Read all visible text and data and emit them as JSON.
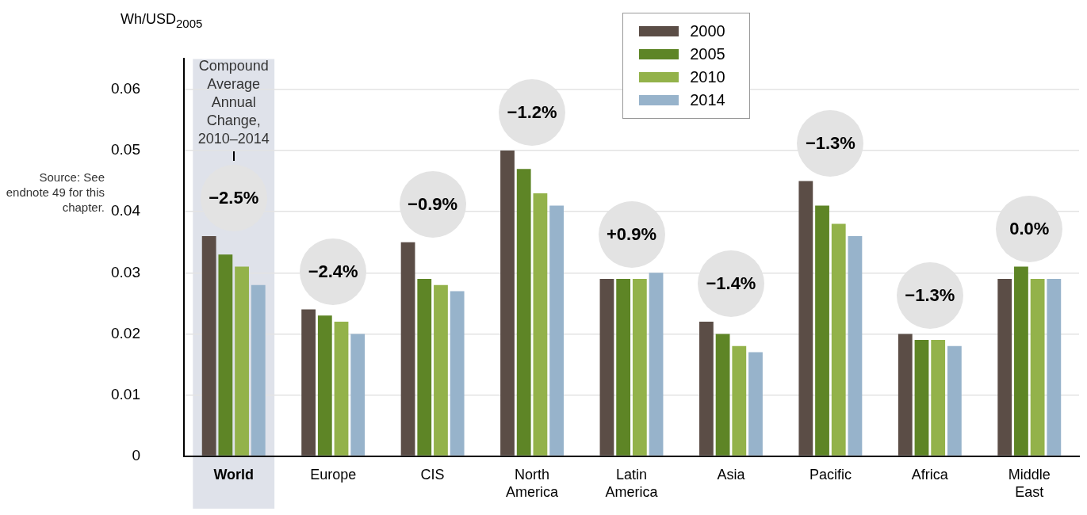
{
  "chart_data": {
    "type": "bar",
    "ylabel": "Wh/USD$_{2005}$",
    "categories": [
      "World",
      "Europe",
      "CIS",
      "North America",
      "Latin America",
      "Asia",
      "Pacific",
      "Africa",
      "Middle East"
    ],
    "series": [
      {
        "name": "2000",
        "color": "#5b4d46",
        "values": [
          0.036,
          0.024,
          0.035,
          0.05,
          0.029,
          0.022,
          0.045,
          0.02,
          0.029
        ]
      },
      {
        "name": "2005",
        "color": "#5e8526",
        "values": [
          0.033,
          0.023,
          0.029,
          0.047,
          0.029,
          0.02,
          0.041,
          0.019,
          0.031
        ]
      },
      {
        "name": "2010",
        "color": "#93b24a",
        "values": [
          0.031,
          0.022,
          0.028,
          0.043,
          0.029,
          0.018,
          0.038,
          0.019,
          0.029
        ]
      },
      {
        "name": "2014",
        "color": "#97b3cb",
        "values": [
          0.028,
          0.02,
          0.027,
          0.041,
          0.03,
          0.017,
          0.036,
          0.018,
          0.029
        ]
      }
    ],
    "ylim": [
      0,
      0.065
    ],
    "yticks": [
      0,
      0.01,
      0.02,
      0.03,
      0.04,
      0.05,
      0.06
    ],
    "grid": "y",
    "legend": "top",
    "bands": [
      {
        "axis": "x",
        "from": "World",
        "to": "World",
        "color": "#dfe2ea"
      }
    ],
    "annotations": [
      "Compound Average Annual Change, 2010–2014",
      "Source: See endnote 49 for this chapter.",
      "−2.5%",
      "−2.4%",
      "−0.9%",
      "−1.2%",
      "+0.9%",
      "−1.4%",
      "−1.3%",
      "−1.3%",
      "0.0%"
    ]
  }
}
